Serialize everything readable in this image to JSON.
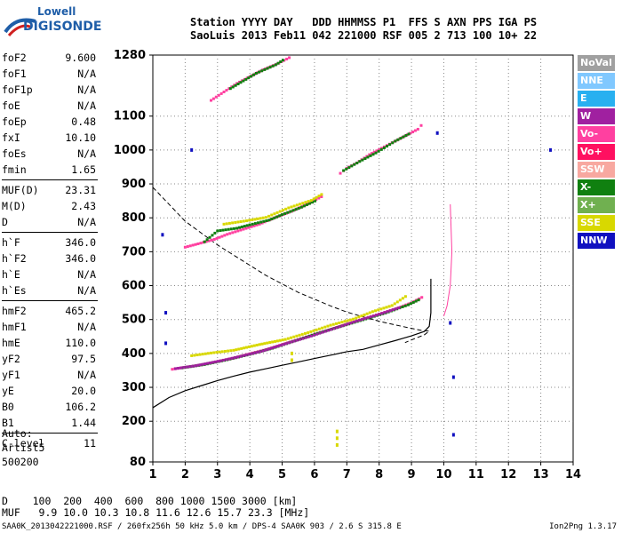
{
  "logo": {
    "brand_top": "Lowell",
    "brand_bottom": "DIGISONDE"
  },
  "header": {
    "line1": "Station YYYY DAY   DDD HHMMSS P1  FFS S AXN PPS IGA PS",
    "line2": "SaoLuis 2013 Feb11 042 221000 RSF 005 2 713 100 10+ 22"
  },
  "params": [
    {
      "name": "foF2",
      "value": "9.600"
    },
    {
      "name": "foF1",
      "value": "N/A"
    },
    {
      "name": "foF1p",
      "value": "N/A"
    },
    {
      "name": "foE",
      "value": "N/A"
    },
    {
      "name": "foEp",
      "value": "0.48"
    },
    {
      "name": "fxI",
      "value": "10.10"
    },
    {
      "name": "foEs",
      "value": "N/A"
    },
    {
      "name": "fmin",
      "value": "1.65"
    },
    {
      "name": "MUF(D)",
      "value": "23.31"
    },
    {
      "name": "M(D)",
      "value": "2.43"
    },
    {
      "name": "D",
      "value": "N/A"
    },
    {
      "name": "h`F",
      "value": "346.0"
    },
    {
      "name": "h`F2",
      "value": "346.0"
    },
    {
      "name": "h`E",
      "value": "N/A"
    },
    {
      "name": "h`Es",
      "value": "N/A"
    },
    {
      "name": "hmF2",
      "value": "465.2"
    },
    {
      "name": "hmF1",
      "value": "N/A"
    },
    {
      "name": "hmE",
      "value": "110.0"
    },
    {
      "name": "yF2",
      "value": "97.5"
    },
    {
      "name": "yF1",
      "value": "N/A"
    },
    {
      "name": "yE",
      "value": "20.0"
    },
    {
      "name": "B0",
      "value": "106.2"
    },
    {
      "name": "B1",
      "value": "1.44"
    },
    {
      "name": "C-level",
      "value": "11"
    }
  ],
  "auto": {
    "line1": "Auto:",
    "line2": "Artist5",
    "line3": "500200"
  },
  "distance_table": {
    "d_row": "D    100  200  400  600  800 1000 1500 3000 [km]",
    "muf_row": "MUF   9.9 10.0 10.3 10.8 11.6 12.6 15.7 23.3 [MHz]"
  },
  "footer": {
    "file_info": "SAA0K_2013042221000.RSF / 260fx256h 50 kHz 5.0 km / DPS-4 SAA0K 903 / 2.6 S 315.8 E",
    "version": "Ion2Png 1.3.17"
  },
  "legend": [
    {
      "label": "NoVal",
      "color": "#a0a0a0"
    },
    {
      "label": "NNE",
      "color": "#80c8ff"
    },
    {
      "label": "E",
      "color": "#28b0f0"
    },
    {
      "label": "W",
      "color": "#a020a0"
    },
    {
      "label": "Vo-",
      "color": "#ff40a0"
    },
    {
      "label": "Vo+",
      "color": "#ff1060"
    },
    {
      "label": "SSW",
      "color": "#f8a8a0"
    },
    {
      "label": "X-",
      "color": "#108010"
    },
    {
      "label": "X+",
      "color": "#70b050"
    },
    {
      "label": "SSE",
      "color": "#d8d800"
    },
    {
      "label": "NNW",
      "color": "#1010c0"
    }
  ],
  "chart_data": {
    "type": "scatter",
    "x_ticks": [
      1,
      2,
      3,
      4,
      5,
      6,
      7,
      8,
      9,
      10,
      11,
      12,
      13,
      14
    ],
    "y_ticks": [
      80,
      200,
      300,
      400,
      500,
      600,
      700,
      800,
      900,
      1000,
      1100,
      1280
    ],
    "xlim": [
      1,
      14
    ],
    "ylim": [
      80,
      1280
    ],
    "grid": true,
    "series": [
      {
        "color": "#ff40a0",
        "points": [
          [
            1.6,
            352
          ],
          [
            2.0,
            358
          ],
          [
            2.5,
            365
          ],
          [
            3.0,
            375
          ],
          [
            3.5,
            385
          ],
          [
            4.0,
            398
          ],
          [
            4.5,
            410
          ],
          [
            5.0,
            425
          ],
          [
            5.5,
            440
          ],
          [
            6.0,
            455
          ],
          [
            6.5,
            470
          ],
          [
            7.0,
            485
          ],
          [
            7.5,
            500
          ],
          [
            8.0,
            515
          ],
          [
            8.5,
            530
          ],
          [
            9.0,
            548
          ],
          [
            9.4,
            568
          ]
        ]
      },
      {
        "color": "#108010",
        "points": [
          [
            1.9,
            356
          ],
          [
            2.6,
            366
          ],
          [
            3.3,
            380
          ],
          [
            4.0,
            396
          ],
          [
            4.7,
            414
          ],
          [
            5.4,
            436
          ],
          [
            6.1,
            458
          ],
          [
            6.8,
            478
          ],
          [
            7.5,
            498
          ],
          [
            8.2,
            518
          ],
          [
            8.9,
            542
          ],
          [
            9.3,
            560
          ]
        ]
      },
      {
        "color": "#a020a0",
        "points": [
          [
            1.7,
            354
          ],
          [
            2.3,
            362
          ],
          [
            3.1,
            377
          ],
          [
            3.8,
            392
          ],
          [
            4.4,
            406
          ],
          [
            5.2,
            430
          ],
          [
            5.9,
            450
          ],
          [
            6.6,
            472
          ],
          [
            7.3,
            494
          ],
          [
            8.0,
            514
          ],
          [
            8.7,
            536
          ]
        ]
      },
      {
        "color": "#d8d800",
        "points": [
          [
            2.2,
            392
          ],
          [
            2.8,
            400
          ],
          [
            3.5,
            408
          ],
          [
            4.3,
            425
          ],
          [
            5.1,
            440
          ],
          [
            5.8,
            460
          ],
          [
            6.5,
            482
          ],
          [
            7.2,
            500
          ],
          [
            7.8,
            522
          ],
          [
            8.4,
            540
          ],
          [
            8.9,
            572
          ]
        ]
      },
      {
        "color": "#ff40a0",
        "points": [
          [
            2.0,
            712
          ],
          [
            2.4,
            722
          ],
          [
            2.9,
            735
          ],
          [
            3.3,
            750
          ],
          [
            3.8,
            765
          ],
          [
            4.3,
            780
          ],
          [
            4.8,
            800
          ],
          [
            5.3,
            818
          ],
          [
            5.8,
            840
          ],
          [
            6.3,
            865
          ]
        ]
      },
      {
        "color": "#108010",
        "points": [
          [
            2.6,
            728
          ],
          [
            3.0,
            760
          ],
          [
            3.6,
            768
          ],
          [
            4.0,
            778
          ],
          [
            4.6,
            792
          ],
          [
            5.0,
            808
          ],
          [
            5.6,
            830
          ],
          [
            6.1,
            852
          ]
        ]
      },
      {
        "color": "#d8d800",
        "points": [
          [
            3.2,
            780
          ],
          [
            3.9,
            790
          ],
          [
            4.5,
            800
          ],
          [
            5.2,
            828
          ],
          [
            5.9,
            850
          ],
          [
            6.3,
            872
          ]
        ]
      },
      {
        "color": "#ff40a0",
        "points": [
          [
            6.8,
            930
          ],
          [
            7.0,
            945
          ],
          [
            7.3,
            960
          ],
          [
            7.7,
            985
          ],
          [
            8.0,
            1000
          ],
          [
            8.4,
            1020
          ],
          [
            8.8,
            1040
          ],
          [
            9.2,
            1060
          ],
          [
            9.4,
            1082
          ]
        ]
      },
      {
        "color": "#108010",
        "points": [
          [
            6.9,
            938
          ],
          [
            7.4,
            965
          ],
          [
            7.9,
            990
          ],
          [
            8.5,
            1025
          ],
          [
            9.0,
            1050
          ]
        ]
      },
      {
        "color": "#ff40a0",
        "points": [
          [
            2.8,
            1145
          ],
          [
            3.2,
            1170
          ],
          [
            3.6,
            1195
          ],
          [
            4.0,
            1215
          ],
          [
            4.4,
            1235
          ],
          [
            4.9,
            1255
          ],
          [
            5.3,
            1275
          ]
        ]
      },
      {
        "color": "#108010",
        "points": [
          [
            3.4,
            1180
          ],
          [
            4.2,
            1225
          ],
          [
            4.8,
            1250
          ],
          [
            5.1,
            1268
          ]
        ]
      },
      {
        "color": "#1010c0",
        "points": [
          [
            1.4,
            520
          ],
          [
            1.4,
            430
          ],
          [
            2.2,
            1000
          ],
          [
            10.2,
            490
          ],
          [
            10.3,
            330
          ],
          [
            10.3,
            160
          ],
          [
            13.3,
            1000
          ],
          [
            1.3,
            750
          ],
          [
            9.8,
            1050
          ]
        ]
      },
      {
        "color": "#d8d800",
        "points": [
          [
            6.7,
            170
          ],
          [
            6.7,
            150
          ],
          [
            6.7,
            130
          ],
          [
            5.3,
            400
          ],
          [
            5.3,
            380
          ]
        ]
      }
    ],
    "profile_line": [
      [
        1.0,
        240
      ],
      [
        1.5,
        270
      ],
      [
        2.0,
        290
      ],
      [
        2.5,
        305
      ],
      [
        3.0,
        320
      ],
      [
        3.5,
        333
      ],
      [
        4.0,
        345
      ],
      [
        4.5,
        355
      ],
      [
        5.0,
        365
      ],
      [
        5.5,
        375
      ],
      [
        6.0,
        385
      ],
      [
        6.5,
        395
      ],
      [
        7.0,
        405
      ],
      [
        7.5,
        412
      ],
      [
        8.0,
        425
      ],
      [
        8.5,
        438
      ],
      [
        9.0,
        452
      ],
      [
        9.4,
        465
      ],
      [
        9.55,
        480
      ],
      [
        9.6,
        520
      ],
      [
        9.6,
        560
      ],
      [
        9.6,
        620
      ]
    ],
    "profile_dashed": [
      [
        1.0,
        890
      ],
      [
        1.5,
        840
      ],
      [
        2.0,
        790
      ],
      [
        2.5,
        755
      ],
      [
        3.0,
        720
      ],
      [
        3.5,
        690
      ],
      [
        4.0,
        660
      ],
      [
        4.5,
        630
      ],
      [
        5.0,
        605
      ],
      [
        5.5,
        580
      ],
      [
        6.0,
        560
      ],
      [
        6.5,
        540
      ],
      [
        7.0,
        522
      ],
      [
        7.5,
        508
      ],
      [
        8.0,
        495
      ],
      [
        8.5,
        484
      ],
      [
        9.0,
        474
      ],
      [
        9.3,
        468
      ],
      [
        9.55,
        466
      ],
      [
        9.4,
        455
      ],
      [
        9.0,
        440
      ],
      [
        8.8,
        432
      ]
    ],
    "extra_line": [
      [
        10.0,
        510
      ],
      [
        10.1,
        540
      ],
      [
        10.2,
        600
      ],
      [
        10.25,
        700
      ],
      [
        10.2,
        840
      ]
    ]
  }
}
